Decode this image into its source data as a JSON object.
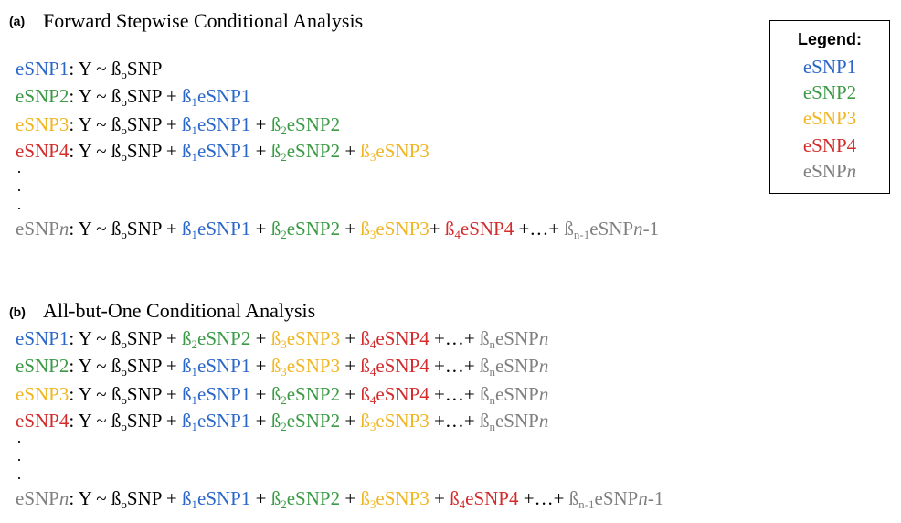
{
  "colors": {
    "c1": "#2b67c9",
    "c2": "#3c9a46",
    "c3": "#f0b623",
    "c4": "#d22c2c",
    "cn": "#7f7f7f",
    "black": "#000000"
  },
  "panel_a": {
    "label": "(a)",
    "title": "Forward Stepwise Conditional Analysis",
    "lines": [
      [
        {
          "t": "eSNP1",
          "c": "c1"
        },
        {
          "t": ": Y ~ ß",
          "c": "black"
        },
        {
          "t": "o",
          "c": "black",
          "sub": true
        },
        {
          "t": "SNP",
          "c": "black"
        }
      ],
      [
        {
          "t": "eSNP2",
          "c": "c2"
        },
        {
          "t": ": Y ~ ß",
          "c": "black"
        },
        {
          "t": "o",
          "c": "black",
          "sub": true
        },
        {
          "t": "SNP + ",
          "c": "black"
        },
        {
          "t": "ß",
          "c": "c1"
        },
        {
          "t": "1",
          "c": "c1",
          "sub": true
        },
        {
          "t": "eSNP1",
          "c": "c1"
        }
      ],
      [
        {
          "t": "eSNP3",
          "c": "c3"
        },
        {
          "t": ": Y ~ ß",
          "c": "black"
        },
        {
          "t": "o",
          "c": "black",
          "sub": true
        },
        {
          "t": "SNP + ",
          "c": "black"
        },
        {
          "t": "ß",
          "c": "c1"
        },
        {
          "t": "1",
          "c": "c1",
          "sub": true
        },
        {
          "t": "eSNP1",
          "c": "c1"
        },
        {
          "t": " + ",
          "c": "black"
        },
        {
          "t": "ß",
          "c": "c2"
        },
        {
          "t": "2",
          "c": "c2",
          "sub": true
        },
        {
          "t": "eSNP2",
          "c": "c2"
        }
      ],
      [
        {
          "t": "eSNP4",
          "c": "c4"
        },
        {
          "t": ": Y ~ ß",
          "c": "black"
        },
        {
          "t": "o",
          "c": "black",
          "sub": true
        },
        {
          "t": "SNP + ",
          "c": "black"
        },
        {
          "t": "ß",
          "c": "c1"
        },
        {
          "t": "1",
          "c": "c1",
          "sub": true
        },
        {
          "t": "eSNP1",
          "c": "c1"
        },
        {
          "t": " + ",
          "c": "black"
        },
        {
          "t": "ß",
          "c": "c2"
        },
        {
          "t": "2",
          "c": "c2",
          "sub": true
        },
        {
          "t": "eSNP2",
          "c": "c2"
        },
        {
          "t": " + ",
          "c": "black"
        },
        {
          "t": "ß",
          "c": "c3"
        },
        {
          "t": "3",
          "c": "c3",
          "sub": true
        },
        {
          "t": "eSNP3",
          "c": "c3"
        }
      ],
      [
        {
          "t": "eSNP",
          "c": "cn"
        },
        {
          "t": "n",
          "c": "cn",
          "i": true
        },
        {
          "t": ": Y ~ ß",
          "c": "black"
        },
        {
          "t": "o",
          "c": "black",
          "sub": true
        },
        {
          "t": "SNP + ",
          "c": "black"
        },
        {
          "t": "ß",
          "c": "c1"
        },
        {
          "t": "1",
          "c": "c1",
          "sub": true
        },
        {
          "t": "eSNP1",
          "c": "c1"
        },
        {
          "t": " + ",
          "c": "black"
        },
        {
          "t": "ß",
          "c": "c2"
        },
        {
          "t": "2",
          "c": "c2",
          "sub": true
        },
        {
          "t": "eSNP2",
          "c": "c2"
        },
        {
          "t": " + ",
          "c": "black"
        },
        {
          "t": "ß",
          "c": "c3"
        },
        {
          "t": "3",
          "c": "c3",
          "sub": true
        },
        {
          "t": "eSNP3",
          "c": "c3"
        },
        {
          "t": "+ ",
          "c": "black"
        },
        {
          "t": "ß",
          "c": "c4"
        },
        {
          "t": "4",
          "c": "c4",
          "sub": true
        },
        {
          "t": "eSNP4",
          "c": "c4"
        },
        {
          "t": " +…+ ",
          "c": "black"
        },
        {
          "t": "ß",
          "c": "cn"
        },
        {
          "t": "n-1",
          "c": "cn",
          "sub": true
        },
        {
          "t": "eSNP",
          "c": "cn"
        },
        {
          "t": "n",
          "c": "cn",
          "i": true
        },
        {
          "t": "-1",
          "c": "cn"
        }
      ]
    ],
    "dots": [
      "·",
      "·",
      "·"
    ]
  },
  "panel_b": {
    "label": "(b)",
    "title": "All-but-One Conditional Analysis",
    "lines": [
      [
        {
          "t": "eSNP1",
          "c": "c1"
        },
        {
          "t": ": Y ~ ß",
          "c": "black"
        },
        {
          "t": "o",
          "c": "black",
          "sub": true
        },
        {
          "t": "SNP + ",
          "c": "black"
        },
        {
          "t": "ß",
          "c": "c2"
        },
        {
          "t": "2",
          "c": "c2",
          "sub": true
        },
        {
          "t": "eSNP2",
          "c": "c2"
        },
        {
          "t": " + ",
          "c": "black"
        },
        {
          "t": "ß",
          "c": "c3"
        },
        {
          "t": "3",
          "c": "c3",
          "sub": true
        },
        {
          "t": "eSNP3",
          "c": "c3"
        },
        {
          "t": " + ",
          "c": "black"
        },
        {
          "t": "ß",
          "c": "c4"
        },
        {
          "t": "4",
          "c": "c4",
          "sub": true
        },
        {
          "t": "eSNP4",
          "c": "c4"
        },
        {
          "t": " +…+ ",
          "c": "black"
        },
        {
          "t": "ß",
          "c": "cn"
        },
        {
          "t": "n",
          "c": "cn",
          "sub": true
        },
        {
          "t": "eSNP",
          "c": "cn"
        },
        {
          "t": "n",
          "c": "cn",
          "i": true
        }
      ],
      [
        {
          "t": "eSNP2",
          "c": "c2"
        },
        {
          "t": ": Y ~  ß",
          "c": "black"
        },
        {
          "t": "o",
          "c": "black",
          "sub": true
        },
        {
          "t": "SNP  + ",
          "c": "black"
        },
        {
          "t": "ß",
          "c": "c1"
        },
        {
          "t": "1",
          "c": "c1",
          "sub": true
        },
        {
          "t": "eSNP1",
          "c": "c1"
        },
        {
          "t": " + ",
          "c": "black"
        },
        {
          "t": "ß",
          "c": "c3"
        },
        {
          "t": "3",
          "c": "c3",
          "sub": true
        },
        {
          "t": "eSNP3",
          "c": "c3"
        },
        {
          "t": " + ",
          "c": "black"
        },
        {
          "t": "ß",
          "c": "c4"
        },
        {
          "t": "4",
          "c": "c4",
          "sub": true
        },
        {
          "t": "eSNP4",
          "c": "c4"
        },
        {
          "t": " +…+ ",
          "c": "black"
        },
        {
          "t": "ß",
          "c": "cn"
        },
        {
          "t": "n",
          "c": "cn",
          "sub": true
        },
        {
          "t": "eSNP",
          "c": "cn"
        },
        {
          "t": "n",
          "c": "cn",
          "i": true
        }
      ],
      [
        {
          "t": "eSNP3",
          "c": "c3"
        },
        {
          "t": ": Y ~  ß",
          "c": "black"
        },
        {
          "t": "o",
          "c": "black",
          "sub": true
        },
        {
          "t": "SNP  + ",
          "c": "black"
        },
        {
          "t": "ß",
          "c": "c1"
        },
        {
          "t": "1",
          "c": "c1",
          "sub": true
        },
        {
          "t": "eSNP1",
          "c": "c1"
        },
        {
          "t": " + ",
          "c": "black"
        },
        {
          "t": "ß",
          "c": "c2"
        },
        {
          "t": "2",
          "c": "c2",
          "sub": true
        },
        {
          "t": "eSNP2",
          "c": "c2"
        },
        {
          "t": " + ",
          "c": "black"
        },
        {
          "t": "ß",
          "c": "c4"
        },
        {
          "t": "4",
          "c": "c4",
          "sub": true
        },
        {
          "t": "eSNP4",
          "c": "c4"
        },
        {
          "t": " +…+ ",
          "c": "black"
        },
        {
          "t": "ß",
          "c": "cn"
        },
        {
          "t": "n",
          "c": "cn",
          "sub": true
        },
        {
          "t": "eSNP",
          "c": "cn"
        },
        {
          "t": "n",
          "c": "cn",
          "i": true
        }
      ],
      [
        {
          "t": "eSNP4",
          "c": "c4"
        },
        {
          "t": ": Y ~  ß",
          "c": "black"
        },
        {
          "t": "o",
          "c": "black",
          "sub": true
        },
        {
          "t": "SNP  + ",
          "c": "black"
        },
        {
          "t": "ß",
          "c": "c1"
        },
        {
          "t": "1",
          "c": "c1",
          "sub": true
        },
        {
          "t": "eSNP1",
          "c": "c1"
        },
        {
          "t": " + ",
          "c": "black"
        },
        {
          "t": "ß",
          "c": "c2"
        },
        {
          "t": "2",
          "c": "c2",
          "sub": true
        },
        {
          "t": "eSNP2",
          "c": "c2"
        },
        {
          "t": " + ",
          "c": "black"
        },
        {
          "t": "ß",
          "c": "c3"
        },
        {
          "t": "3",
          "c": "c3",
          "sub": true
        },
        {
          "t": "eSNP3",
          "c": "c3"
        },
        {
          "t": " +…+ ",
          "c": "black"
        },
        {
          "t": "ß",
          "c": "cn"
        },
        {
          "t": "n",
          "c": "cn",
          "sub": true
        },
        {
          "t": "eSNP",
          "c": "cn"
        },
        {
          "t": "n",
          "c": "cn",
          "i": true
        }
      ],
      [
        {
          "t": "eSNP",
          "c": "cn"
        },
        {
          "t": "n",
          "c": "cn",
          "i": true
        },
        {
          "t": ": Y ~ ß",
          "c": "black"
        },
        {
          "t": "o",
          "c": "black",
          "sub": true
        },
        {
          "t": "SNP + ",
          "c": "black"
        },
        {
          "t": "ß",
          "c": "c1"
        },
        {
          "t": "1",
          "c": "c1",
          "sub": true
        },
        {
          "t": "eSNP1",
          "c": "c1"
        },
        {
          "t": " + ",
          "c": "black"
        },
        {
          "t": "ß",
          "c": "c2"
        },
        {
          "t": "2",
          "c": "c2",
          "sub": true
        },
        {
          "t": "eSNP2",
          "c": "c2"
        },
        {
          "t": " + ",
          "c": "black"
        },
        {
          "t": "ß",
          "c": "c3"
        },
        {
          "t": "3",
          "c": "c3",
          "sub": true
        },
        {
          "t": "eSNP3",
          "c": "c3"
        },
        {
          "t": " + ",
          "c": "black"
        },
        {
          "t": "ß",
          "c": "c4"
        },
        {
          "t": "4",
          "c": "c4",
          "sub": true
        },
        {
          "t": "eSNP4",
          "c": "c4"
        },
        {
          "t": " +…+ ",
          "c": "black"
        },
        {
          "t": "ß",
          "c": "cn"
        },
        {
          "t": "n-1",
          "c": "cn",
          "sub": true
        },
        {
          "t": "eSNP",
          "c": "cn"
        },
        {
          "t": "n",
          "c": "cn",
          "i": true
        },
        {
          "t": "-1",
          "c": "cn"
        }
      ]
    ],
    "dots": [
      "·",
      "·",
      "·"
    ]
  },
  "legend": {
    "title": "Legend:",
    "items": [
      {
        "label": "eSNP1",
        "c": "c1"
      },
      {
        "label": "eSNP2",
        "c": "c2"
      },
      {
        "label": "eSNP3",
        "c": "c3"
      },
      {
        "label": "eSNP4",
        "c": "c4"
      },
      {
        "label": "eSNP",
        "suffix": "n",
        "c": "cn"
      }
    ]
  }
}
